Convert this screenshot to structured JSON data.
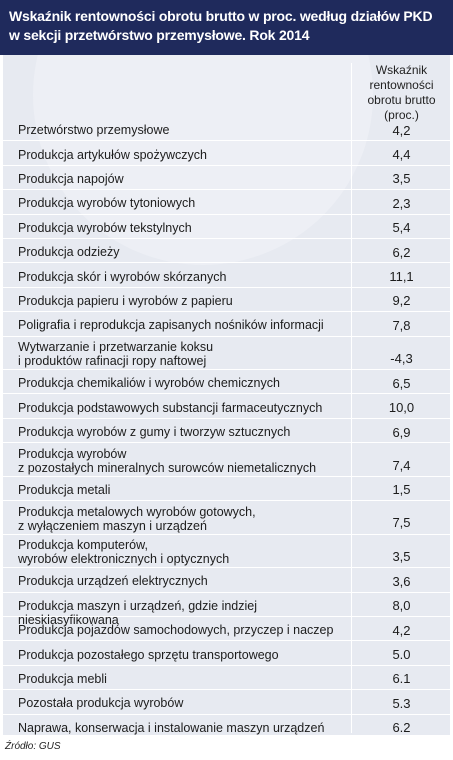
{
  "title": {
    "line1": "Wskaźnik rentowności obrotu brutto w proc. według działów PKD",
    "line2": "w sekcji przetwórstwo przemysłowe. Rok 2014"
  },
  "column_header": "Wskaźnik\nrentowności\nobrotu brutto\n(proc.)",
  "source": "Źródło: GUS",
  "colors": {
    "title_bg": "#1f2a5c",
    "panel_bg": "#e7eaf1",
    "separator": "#ffffff"
  },
  "chart_data": {
    "type": "table",
    "columns": [
      "",
      "Wskaźnik rentowności obrotu brutto (proc.)"
    ],
    "rows": [
      {
        "category": "Przetwórstwo przemysłowe",
        "value": "4,2"
      },
      {
        "category": "Produkcja artykułów spożywczych",
        "value": "4,4"
      },
      {
        "category": "Produkcja napojów",
        "value": "3,5"
      },
      {
        "category": "Produkcja wyrobów tytoniowych",
        "value": "2,3"
      },
      {
        "category": "Produkcja wyrobów tekstylnych",
        "value": "5,4"
      },
      {
        "category": "Produkcja odzieży",
        "value": "6,2"
      },
      {
        "category": "Produkcja skór i wyrobów skórzanych",
        "value": "11,1"
      },
      {
        "category": "Produkcja papieru i wyrobów z papieru",
        "value": "9,2"
      },
      {
        "category": "Poligrafia i reprodukcja zapisanych nośników informacji",
        "value": "7,8"
      },
      {
        "category": "Wytwarzanie i przetwarzanie koksu\ni produktów rafinacji ropy naftowej",
        "value": "-4,3"
      },
      {
        "category": "Produkcja chemikaliów i wyrobów chemicznych",
        "value": "6,5"
      },
      {
        "category": "Produkcja podstawowych substancji farmaceutycznych",
        "value": "10,0"
      },
      {
        "category": "Produkcja wyrobów z gumy i tworzyw sztucznych",
        "value": "6,9"
      },
      {
        "category": "Produkcja wyrobów\nz pozostałych mineralnych surowców niemetalicznych",
        "value": "7,4"
      },
      {
        "category": "Produkcja metali",
        "value": "1,5"
      },
      {
        "category": "Produkcja metalowych wyrobów gotowych,\nz wyłączeniem maszyn i urządzeń",
        "value": "7,5"
      },
      {
        "category": "Produkcja komputerów,\nwyrobów elektronicznych i optycznych",
        "value": "3,5"
      },
      {
        "category": "Produkcja urządzeń elektrycznych",
        "value": "3,6"
      },
      {
        "category": "Produkcja maszyn i urządzeń, gdzie indziej  niesklasyfikowana",
        "value": "8,0"
      },
      {
        "category": "Produkcja pojazdów samochodowych, przyczep i naczep",
        "value": "4,2"
      },
      {
        "category": "Produkcja pozostałego sprzętu transportowego",
        "value": "5.0"
      },
      {
        "category": "Produkcja mebli",
        "value": "6.1"
      },
      {
        "category": "Pozostała produkcja wyrobów",
        "value": "5.3"
      },
      {
        "category": "Naprawa, konserwacja i instalowanie maszyn urządzeń",
        "value": "6.2"
      }
    ]
  }
}
